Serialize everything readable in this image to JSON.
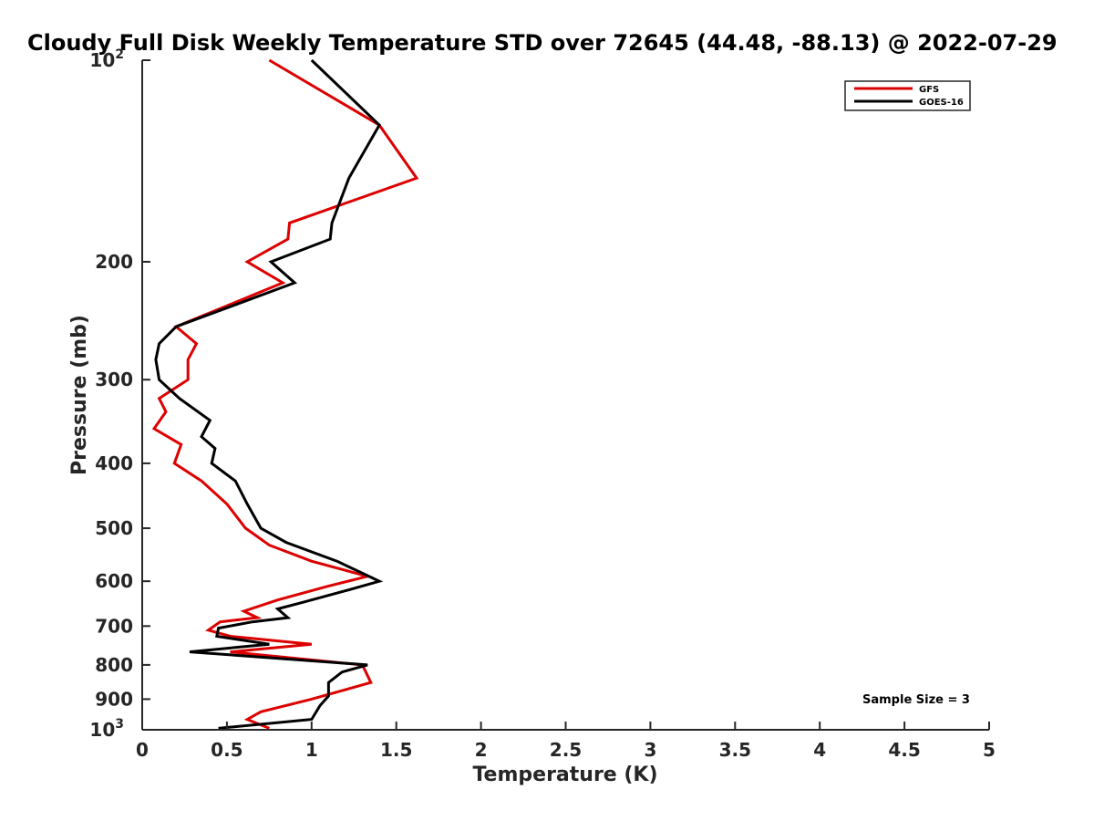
{
  "chart_data": {
    "type": "line",
    "title": "Cloudy Full Disk Weekly Temperature STD over 72645 (44.48, -88.13) @ 2022-07-29",
    "xlabel": "Temperature (K)",
    "ylabel": "Pressure (mb)",
    "xlim": [
      0,
      5
    ],
    "ylim": [
      1000,
      100
    ],
    "yscale": "log",
    "x_ticks": [
      "0",
      "0.5",
      "1",
      "1.5",
      "2",
      "2.5",
      "3",
      "3.5",
      "4",
      "4.5",
      "5"
    ],
    "x_tick_values": [
      0,
      0.5,
      1,
      1.5,
      2,
      2.5,
      3,
      3.5,
      4,
      4.5,
      5
    ],
    "y_ticks": [
      {
        "value": 100,
        "label": "10",
        "sup": "2"
      },
      {
        "value": 200,
        "label": "200",
        "sup": ""
      },
      {
        "value": 300,
        "label": "300",
        "sup": ""
      },
      {
        "value": 400,
        "label": "400",
        "sup": ""
      },
      {
        "value": 500,
        "label": "500",
        "sup": ""
      },
      {
        "value": 600,
        "label": "600",
        "sup": ""
      },
      {
        "value": 700,
        "label": "700",
        "sup": ""
      },
      {
        "value": 800,
        "label": "800",
        "sup": ""
      },
      {
        "value": 900,
        "label": "900",
        "sup": ""
      },
      {
        "value": 1000,
        "label": "10",
        "sup": "3"
      }
    ],
    "grid": false,
    "legend_position": "top-right",
    "annotation": "Sample Size = 3",
    "series": [
      {
        "name": "GFS",
        "color": "#dd0000",
        "points": [
          [
            0.75,
            100
          ],
          [
            1.4,
            125
          ],
          [
            1.62,
            150
          ],
          [
            0.87,
            175
          ],
          [
            0.86,
            185
          ],
          [
            0.62,
            200
          ],
          [
            0.83,
            215
          ],
          [
            0.2,
            250
          ],
          [
            0.32,
            265
          ],
          [
            0.27,
            280
          ],
          [
            0.27,
            300
          ],
          [
            0.1,
            320
          ],
          [
            0.14,
            335
          ],
          [
            0.07,
            355
          ],
          [
            0.23,
            375
          ],
          [
            0.19,
            400
          ],
          [
            0.35,
            425
          ],
          [
            0.5,
            460
          ],
          [
            0.61,
            500
          ],
          [
            0.75,
            530
          ],
          [
            1.0,
            560
          ],
          [
            1.33,
            590
          ],
          [
            1.1,
            610
          ],
          [
            0.8,
            640
          ],
          [
            0.6,
            665
          ],
          [
            0.68,
            680
          ],
          [
            0.46,
            690
          ],
          [
            0.39,
            710
          ],
          [
            0.52,
            725
          ],
          [
            1.0,
            745
          ],
          [
            0.52,
            765
          ],
          [
            1.3,
            800
          ],
          [
            1.35,
            850
          ],
          [
            1.0,
            900
          ],
          [
            0.7,
            940
          ],
          [
            0.62,
            965
          ],
          [
            0.75,
            995
          ]
        ]
      },
      {
        "name": "GOES-16",
        "color": "#000000",
        "points": [
          [
            1.0,
            100
          ],
          [
            1.4,
            125
          ],
          [
            1.22,
            150
          ],
          [
            1.12,
            175
          ],
          [
            1.11,
            185
          ],
          [
            0.76,
            200
          ],
          [
            0.9,
            215
          ],
          [
            0.2,
            250
          ],
          [
            0.1,
            265
          ],
          [
            0.08,
            280
          ],
          [
            0.1,
            300
          ],
          [
            0.22,
            320
          ],
          [
            0.4,
            345
          ],
          [
            0.35,
            365
          ],
          [
            0.43,
            380
          ],
          [
            0.41,
            400
          ],
          [
            0.55,
            425
          ],
          [
            0.62,
            460
          ],
          [
            0.7,
            500
          ],
          [
            0.85,
            525
          ],
          [
            1.15,
            560
          ],
          [
            1.4,
            600
          ],
          [
            1.2,
            620
          ],
          [
            0.95,
            645
          ],
          [
            0.8,
            660
          ],
          [
            0.86,
            680
          ],
          [
            0.65,
            690
          ],
          [
            0.45,
            705
          ],
          [
            0.44,
            725
          ],
          [
            0.75,
            745
          ],
          [
            0.28,
            765
          ],
          [
            1.33,
            800
          ],
          [
            1.18,
            820
          ],
          [
            1.1,
            850
          ],
          [
            1.1,
            890
          ],
          [
            1.05,
            920
          ],
          [
            1.0,
            965
          ],
          [
            0.45,
            995
          ]
        ]
      }
    ]
  }
}
